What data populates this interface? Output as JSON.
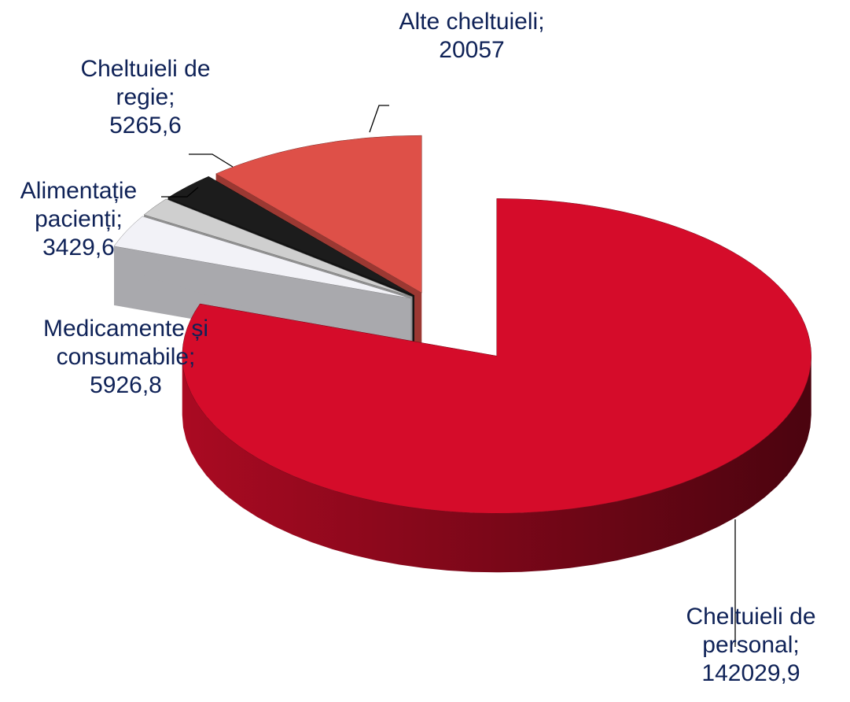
{
  "chart_data": {
    "type": "pie",
    "categories": [
      "Cheltuieli de personal;",
      "Medicamente și consumabile;",
      "Alimentație pacienți;",
      "Cheltuieli de regie;",
      "Alte cheltuieli;"
    ],
    "values": [
      142029.9,
      5926.8,
      3429.6,
      5265.6,
      20057
    ],
    "value_labels": [
      "142029,9",
      "5926,8",
      "3429,6",
      "5265,6",
      "20057"
    ],
    "colors": [
      "#d50c2a",
      "#f2f2f7",
      "#cfcfcf",
      "#1c1c1c",
      "#de5048"
    ]
  }
}
